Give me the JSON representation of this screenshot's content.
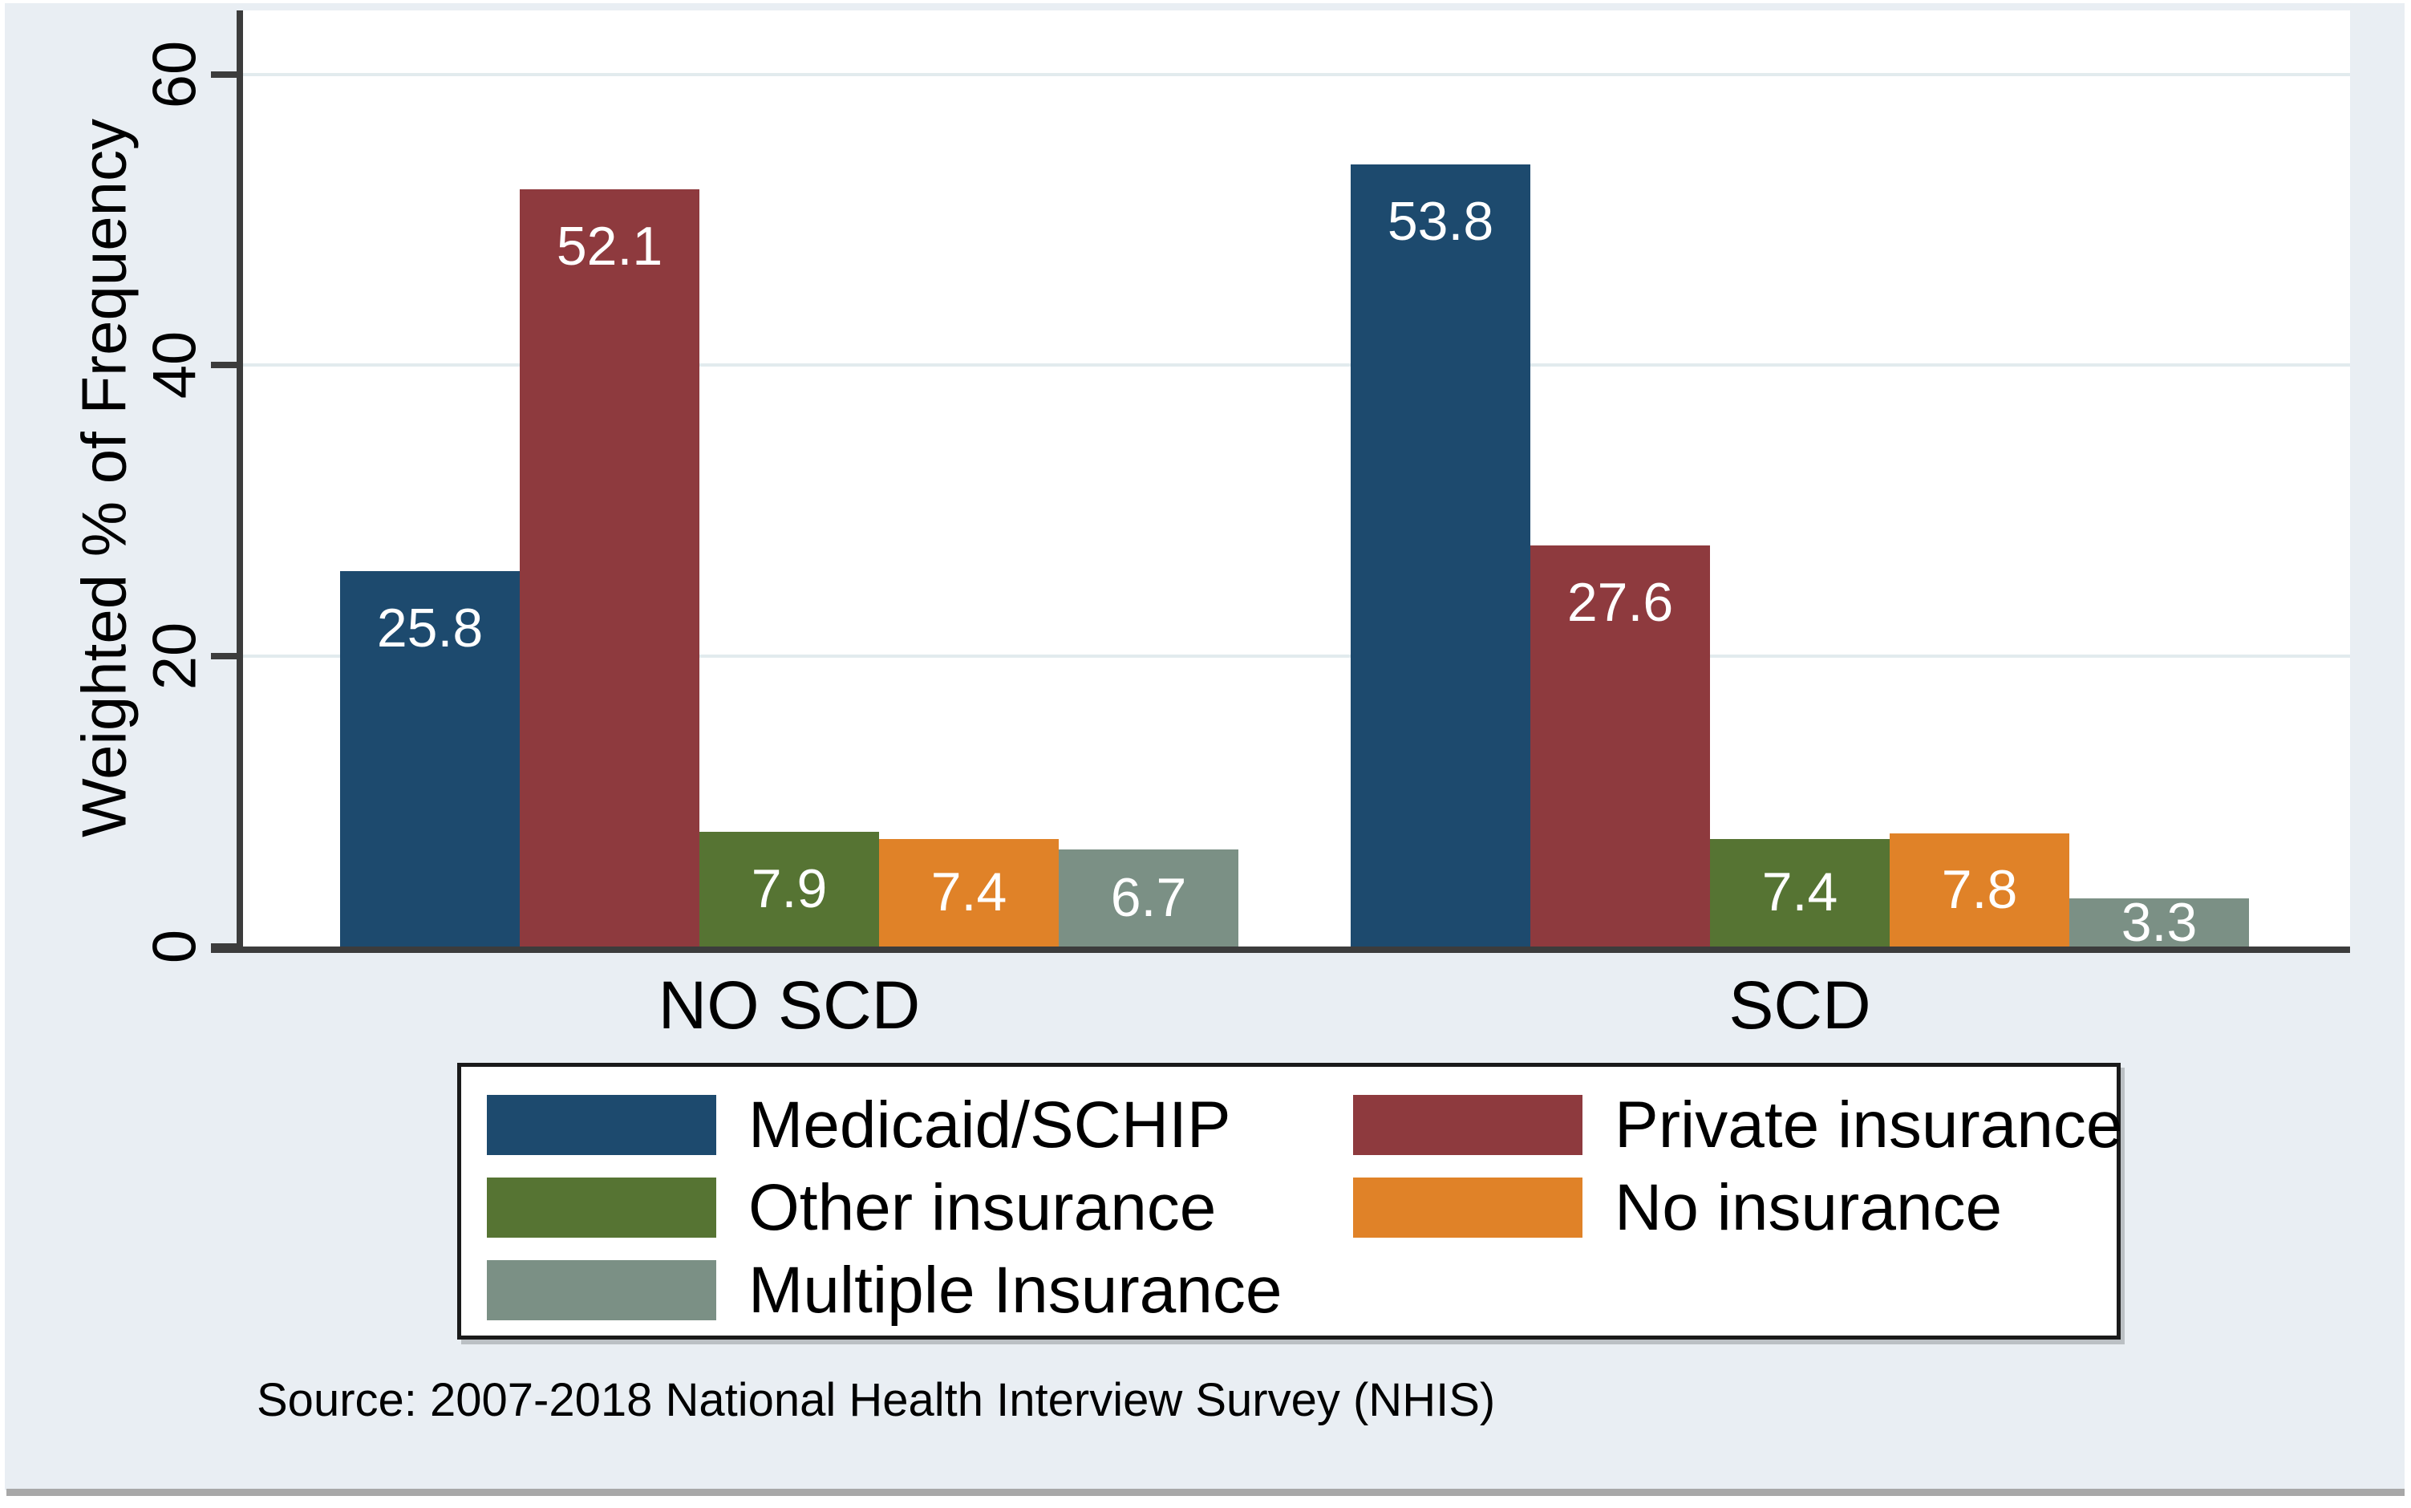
{
  "figure": {
    "background": "#e9eef3",
    "plot_background": "#ffffff",
    "axis_color": "#3c3c3c",
    "gridline_color": "#e2ebee",
    "bar_label_color": "#ffffff",
    "legend_border_color": "#1a1a1a",
    "bottom_rule_color": "#a8a8a8",
    "source_note": "Source: 2007-2018 National Health Interview Survey (NHIS)"
  },
  "chart_data": {
    "type": "bar",
    "title": "",
    "xlabel": "",
    "ylabel": "Weighted % of Frequency",
    "categories": [
      "NO SCD",
      "SCD"
    ],
    "yticks": [
      0,
      20,
      40,
      60
    ],
    "ylim": [
      0,
      64.4
    ],
    "grid": true,
    "bar_labels": true,
    "legend_position": "bottom",
    "series": [
      {
        "name": "Medicaid/SCHIP",
        "color": "#1d4a6e",
        "values": [
          25.8,
          53.8
        ]
      },
      {
        "name": "Private insurance",
        "color": "#8e3a3e",
        "values": [
          52.1,
          27.6
        ]
      },
      {
        "name": "Other insurance",
        "color": "#567433",
        "values": [
          7.9,
          7.4
        ]
      },
      {
        "name": "No insurance",
        "color": "#e08228",
        "values": [
          7.4,
          7.8
        ]
      },
      {
        "name": "Multiple Insurance",
        "color": "#7b9085",
        "values": [
          6.7,
          3.3
        ]
      }
    ]
  }
}
